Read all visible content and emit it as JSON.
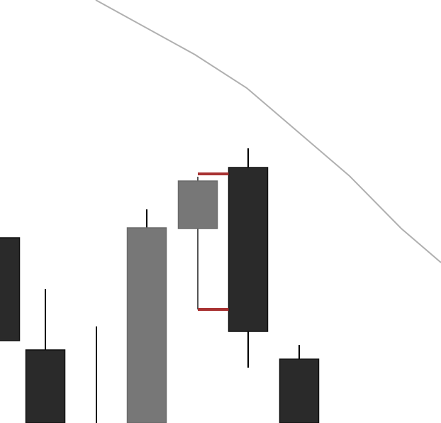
{
  "chart_data": {
    "type": "candlestick",
    "title": "",
    "xlabel": "",
    "ylabel": "",
    "grid": false,
    "legend": "none",
    "ylim": [
      0,
      596
    ],
    "candles": [
      {
        "open": 261,
        "close": 116,
        "high": 261,
        "low": 116,
        "color": "#2a2a2a",
        "wick_color": "#000000"
      },
      {
        "open": 103,
        "close": 0,
        "high": 189,
        "low": 0,
        "color": "#2a2a2a",
        "wick_color": "#000000"
      },
      {
        "open": 136,
        "close": 136,
        "high": 136,
        "low": 0,
        "color": "#2a2a2a",
        "wick_color": "#000000"
      },
      {
        "open": 0,
        "close": 275,
        "high": 301,
        "low": 0,
        "color": "#777777",
        "wick_color": "#000000"
      },
      {
        "open": 274,
        "close": 341,
        "high": 347,
        "low": 160,
        "color": "#777777",
        "wick_color": "#555555"
      },
      {
        "open": 360,
        "close": 129,
        "high": 387,
        "low": 78,
        "color": "#2a2a2a",
        "wick_color": "#000000"
      },
      {
        "open": 90,
        "close": 0,
        "high": 110,
        "low": 0,
        "color": "#2a2a2a",
        "wick_color": "#000000"
      }
    ],
    "x_centers": [
      0,
      64,
      136,
      207,
      279,
      350,
      422
    ],
    "candle_width": 55,
    "pattern_ticks": {
      "color": "#a83232",
      "candle_index": 4,
      "levels": [
        351,
        160
      ]
    },
    "line": {
      "color": "#b0b0b0",
      "points": [
        {
          "x": 135,
          "y": 596
        },
        {
          "x": 275,
          "y": 519
        },
        {
          "x": 348,
          "y": 472
        },
        {
          "x": 493,
          "y": 348
        },
        {
          "x": 566,
          "y": 274
        },
        {
          "x": 622,
          "y": 226
        }
      ]
    }
  }
}
